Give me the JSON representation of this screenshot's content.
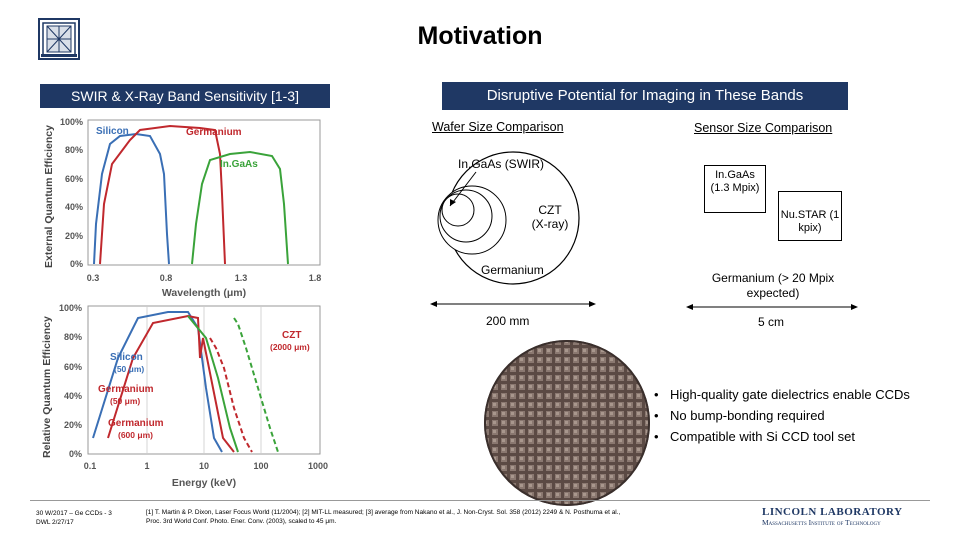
{
  "slide": {
    "title": "Motivation",
    "left_header": "SWIR & X-Ray Band Sensitivity [1-3]",
    "right_header": "Disruptive Potential for Imaging in These Bands"
  },
  "swir_chart": {
    "ylabel": "External Quantum Efficiency",
    "xlabel": "Wavelength (μm)",
    "yticks": [
      "100%",
      "80%",
      "60%",
      "40%",
      "20%",
      "0%"
    ],
    "xticks": [
      "0.3",
      "0.8",
      "1.3",
      "1.8"
    ],
    "series_labels": {
      "silicon": "Silicon",
      "germanium": "Germanium",
      "ingaas": "In.GaAs"
    }
  },
  "xray_chart": {
    "ylabel": "Relative Quantum Efficiency",
    "xlabel": "Energy (keV)",
    "yticks": [
      "100%",
      "80%",
      "60%",
      "40%",
      "20%",
      "0%"
    ],
    "xticks": [
      "0.1",
      "1",
      "10",
      "100",
      "1000"
    ],
    "labels": {
      "czt": "CZT",
      "czt_thick": "(2000 μm)",
      "silicon": "Silicon",
      "silicon_thick": "(50 μm)",
      "ge1": "Germanium",
      "ge1_thick": "(50 μm)",
      "ge2": "Germanium",
      "ge2_thick": "(600 μm)"
    }
  },
  "wafer": {
    "heading": "Wafer Size Comparison",
    "ingaas": "In.GaAs (SWIR)",
    "czt": "CZT (X-ray)",
    "germanium": "Germanium",
    "dimension": "200 mm"
  },
  "sensor": {
    "heading": "Sensor Size Comparison",
    "ingaas": "In.GaAs (1.3 Mpix)",
    "nustar": "Nu.STAR (1 kpix)",
    "germanium": "Germanium (> 20 Mpix expected)",
    "dimension": "5 cm"
  },
  "bullets": [
    "High-quality gate dielectrics enable CCDs",
    "No bump-bonding required",
    "Compatible with Si CCD tool set"
  ],
  "footer": {
    "id_line1": "30 W/2017 – Ge CCDs - 3",
    "id_line2": "DWL 2/27/17",
    "refs_line1": "[1] T. Martin & P. Dixon, Laser Focus World (11/2004); [2] MIT-LL measured; [3] average from Nakano et al., J. Non-Cryst. Sol. 358 (2012) 2249 & N. Posthuma et al.,",
    "refs_line2": "Proc. 3rd World Conf. Photo. Ener. Conv. (2003), scaled to 45 μm.",
    "lab_name": "LINCOLN LABORATORY",
    "lab_sub": "Massachusetts Institute of Technology"
  },
  "colors": {
    "navy": "#1f3864",
    "silicon": "#3a6fb5",
    "germanium": "#c0282d",
    "ingaas": "#3aa33a"
  }
}
